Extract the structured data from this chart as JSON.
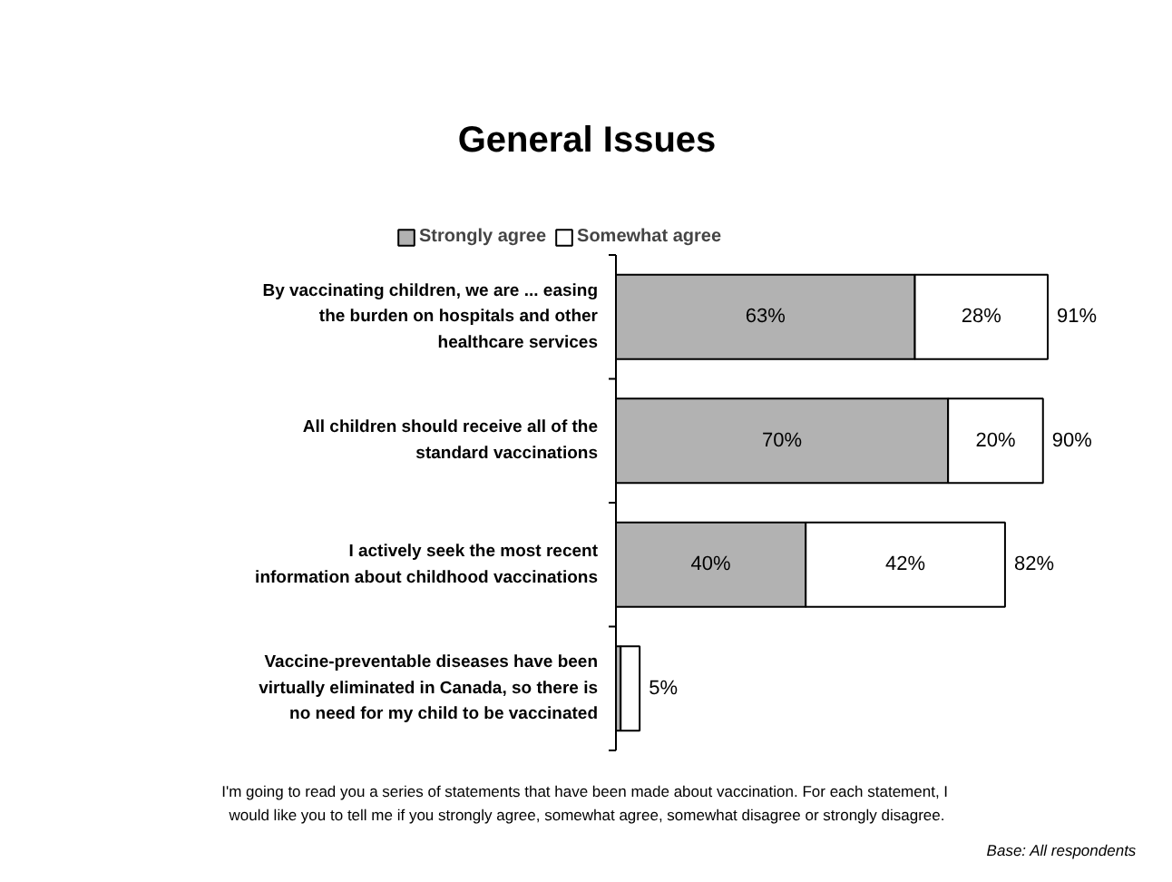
{
  "chart_data": {
    "type": "bar",
    "orientation": "horizontal",
    "stacked": true,
    "title": "General Issues",
    "categories": [
      "By vaccinating children, we are ... easing\nthe burden on hospitals and other\nhealthcare services",
      "All children should receive all of the\nstandard vaccinations",
      "I actively seek the most recent\ninformation about childhood vaccinations",
      "Vaccine-preventable diseases have been\nvirtually eliminated in Canada, so there is\nno need for my child to be vaccinated"
    ],
    "series": [
      {
        "name": "Strongly agree",
        "color": "#b2b2b2",
        "values": [
          63,
          70,
          40,
          1
        ],
        "value_labels": [
          "63%",
          "70%",
          "40%",
          null
        ]
      },
      {
        "name": "Somewhat agree",
        "color": "#ffffff",
        "values": [
          28,
          20,
          42,
          4
        ],
        "value_labels": [
          "28%",
          "20%",
          "42%",
          null
        ]
      }
    ],
    "totals": [
      "91%",
      "90%",
      "82%",
      "5%"
    ],
    "legend": "top",
    "tick_labels": "y",
    "annotations": [
      "I'm going to read you a series of statements that have been made about vaccination.  For each statement, I\nwould like you to tell me if you strongly agree, somewhat agree, somewhat disagree or strongly disagree.",
      "Base: All respondents"
    ]
  }
}
